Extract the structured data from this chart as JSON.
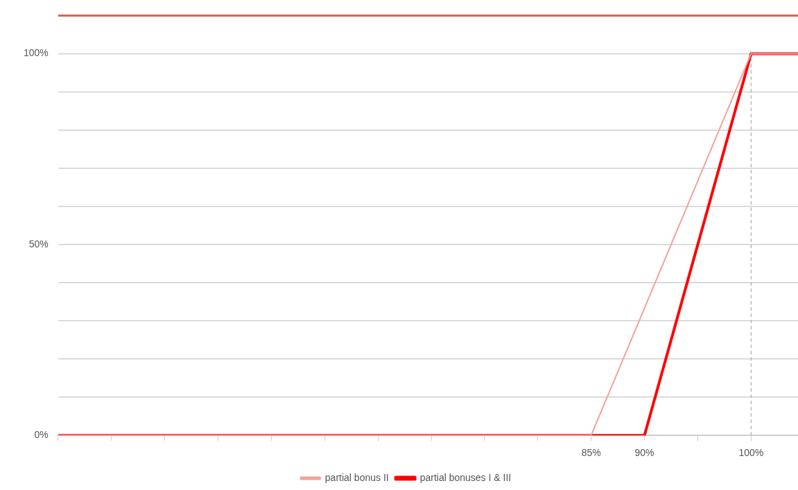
{
  "chart_data": {
    "type": "line",
    "xlim": [
      35,
      104.4
    ],
    "ylim": [
      0,
      110
    ],
    "xticks": [
      {
        "value": 35,
        "label": null
      },
      {
        "value": 40,
        "label": null
      },
      {
        "value": 45,
        "label": null
      },
      {
        "value": 50,
        "label": null
      },
      {
        "value": 55,
        "label": null
      },
      {
        "value": 60,
        "label": null
      },
      {
        "value": 65,
        "label": null
      },
      {
        "value": 70,
        "label": null
      },
      {
        "value": 75,
        "label": null
      },
      {
        "value": 80,
        "label": null
      },
      {
        "value": 85,
        "label": "85%"
      },
      {
        "value": 90,
        "label": "90%"
      },
      {
        "value": 95,
        "label": null
      },
      {
        "value": 100,
        "label": "100%"
      }
    ],
    "yticks": [
      {
        "value": 0,
        "label": "0%"
      },
      {
        "value": 10,
        "label": null
      },
      {
        "value": 20,
        "label": null
      },
      {
        "value": 30,
        "label": null
      },
      {
        "value": 40,
        "label": null
      },
      {
        "value": 50,
        "label": "50%"
      },
      {
        "value": 60,
        "label": null
      },
      {
        "value": 70,
        "label": null
      },
      {
        "value": 80,
        "label": null
      },
      {
        "value": 90,
        "label": null
      },
      {
        "value": 100,
        "label": "100%"
      }
    ],
    "grid": "y",
    "legend": "bottom",
    "marker": "none",
    "series": [
      {
        "name": "partial bonuses I & III",
        "color": "#ff0000",
        "x": [
          35,
          90,
          100,
          104.4
        ],
        "values": [
          0,
          0,
          100,
          100
        ]
      },
      {
        "name": "partial bonus II",
        "color": "#f4a09a",
        "x": [
          35,
          85,
          100,
          104.4
        ],
        "values": [
          0,
          0,
          100,
          100
        ]
      },
      {
        "color": "#aaaaaa",
        "line_style": "dashed",
        "x": [
          100,
          100
        ],
        "values": [
          0,
          100
        ]
      }
    ],
    "ref_lines": [
      {
        "axis": "y",
        "value": 110,
        "color": "#e06050"
      }
    ]
  }
}
